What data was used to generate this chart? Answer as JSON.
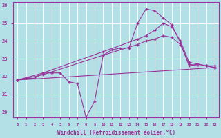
{
  "xlabel": "Windchill (Refroidissement éolien,°C)",
  "xlim": [
    -0.5,
    23.5
  ],
  "ylim": [
    19.7,
    26.2
  ],
  "yticks": [
    20,
    21,
    22,
    23,
    24,
    25,
    26
  ],
  "xticks": [
    0,
    1,
    2,
    3,
    4,
    5,
    6,
    7,
    8,
    9,
    10,
    11,
    12,
    13,
    14,
    15,
    16,
    17,
    18,
    19,
    20,
    21,
    22,
    23
  ],
  "bg_color": "#b3e0e6",
  "grid_color": "#ffffff",
  "line_color": "#993399",
  "lines": [
    {
      "x": [
        0,
        1,
        2,
        3,
        4,
        5,
        6,
        7,
        8,
        9,
        10,
        11,
        12,
        13,
        14,
        15,
        16,
        17,
        18,
        19,
        20,
        21,
        22,
        23
      ],
      "y": [
        21.8,
        21.9,
        21.9,
        22.2,
        22.2,
        22.2,
        21.7,
        21.6,
        19.7,
        20.6,
        23.2,
        23.5,
        23.6,
        23.6,
        25.0,
        25.8,
        25.7,
        25.3,
        24.9,
        23.9,
        22.6,
        22.7,
        22.6,
        22.5
      ]
    },
    {
      "x": [
        0,
        3,
        10,
        14,
        15,
        16,
        17,
        18,
        19,
        20,
        21,
        22,
        23
      ],
      "y": [
        21.8,
        22.2,
        23.4,
        24.1,
        24.3,
        24.6,
        25.0,
        24.8,
        24.0,
        22.8,
        22.7,
        22.6,
        22.6
      ]
    },
    {
      "x": [
        0,
        3,
        10,
        14,
        15,
        16,
        17,
        18,
        19,
        20,
        21,
        22,
        23
      ],
      "y": [
        21.8,
        22.1,
        23.2,
        23.8,
        24.0,
        24.1,
        24.3,
        24.2,
        23.8,
        22.7,
        22.6,
        22.6,
        22.5
      ]
    },
    {
      "x": [
        0,
        23
      ],
      "y": [
        21.8,
        22.5
      ]
    }
  ]
}
